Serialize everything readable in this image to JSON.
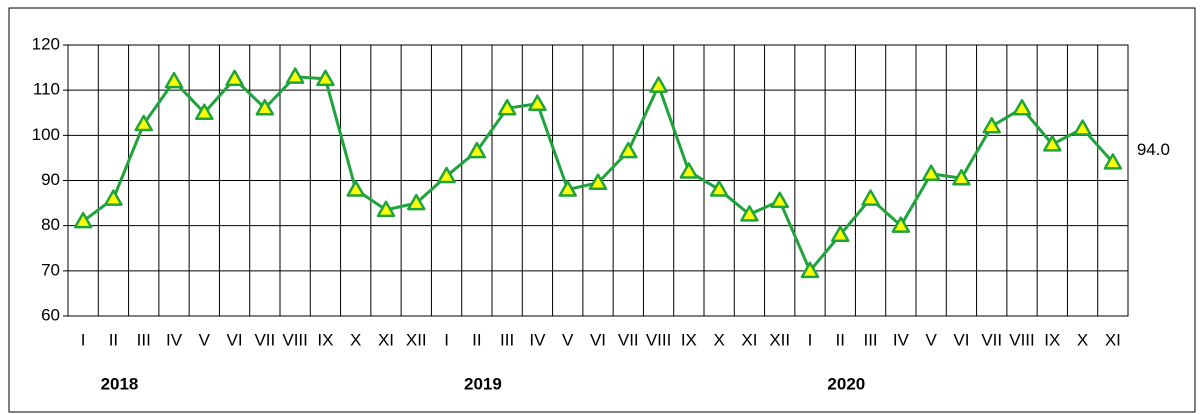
{
  "chart_data": {
    "type": "line",
    "categories": [
      "I",
      "II",
      "III",
      "IV",
      "V",
      "VI",
      "VII",
      "VIII",
      "IX",
      "X",
      "XI",
      "XII",
      "I",
      "II",
      "III",
      "IV",
      "V",
      "VI",
      "VII",
      "VIII",
      "IX",
      "X",
      "XI",
      "XII",
      "I",
      "II",
      "III",
      "IV",
      "V",
      "VI",
      "VII",
      "VIII",
      "IX",
      "X",
      "XI"
    ],
    "year_labels": [
      "2018",
      "2019",
      "2020"
    ],
    "series": [
      {
        "color": "#1fa33c",
        "marker_color": "#ffff00",
        "values": [
          81,
          86,
          102.5,
          112,
          105,
          112.5,
          106,
          113,
          112.5,
          88,
          83.5,
          85,
          91,
          96.5,
          106,
          107,
          88,
          89.5,
          96.5,
          111,
          92,
          88,
          82.5,
          85.5,
          70,
          78,
          86,
          80,
          91.5,
          90.5,
          102,
          106,
          98,
          101.5,
          94
        ],
        "value_labels": [
          null,
          null,
          null,
          null,
          null,
          null,
          null,
          null,
          null,
          null,
          null,
          null,
          null,
          null,
          null,
          null,
          null,
          null,
          null,
          null,
          null,
          null,
          null,
          null,
          null,
          null,
          null,
          null,
          null,
          null,
          null,
          null,
          null,
          null,
          "94.0"
        ]
      }
    ],
    "ylim": [
      60,
      120
    ],
    "yticks": [
      60,
      70,
      80,
      90,
      100,
      110,
      120
    ],
    "grid": true
  }
}
